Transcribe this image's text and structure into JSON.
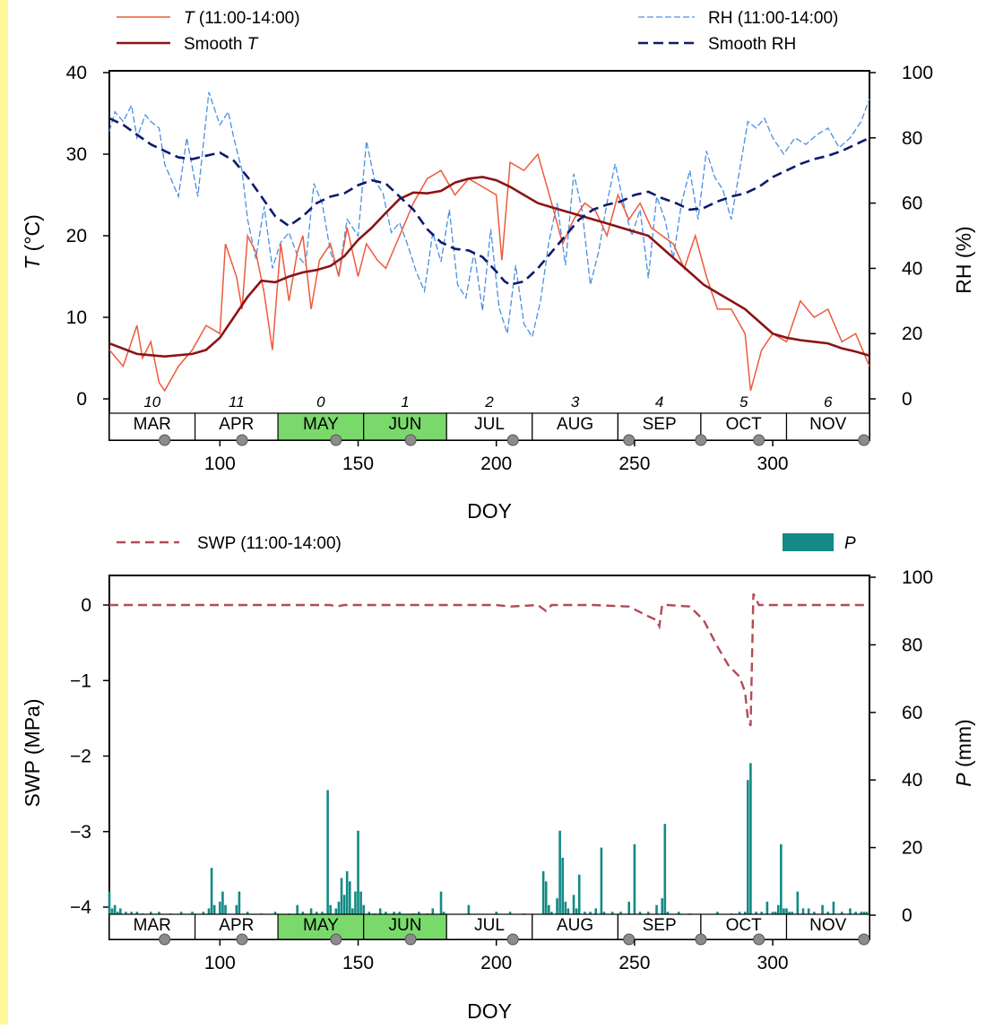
{
  "colors": {
    "accent_strip": "#fff79a",
    "temperature": "#ee5a3c",
    "smooth_temperature": "#8b1414",
    "rh": "#4a90e2",
    "smooth_rh": "#0c1a6e",
    "swp": "#b54a55",
    "precipitation": "#138a86",
    "season_highlight": "#7ad96b",
    "marker": "#8c8c8c"
  },
  "months": {
    "labels": [
      "MAR",
      "APR",
      "MAY",
      "JUN",
      "JUL",
      "AUG",
      "SEP",
      "OCT",
      "NOV"
    ],
    "start_doy": [
      60,
      91,
      121,
      152,
      182,
      213,
      244,
      274,
      305,
      335
    ],
    "highlighted": [
      "MAY",
      "JUN"
    ],
    "icon_marker_doy": [
      80,
      108,
      142,
      169,
      206,
      248,
      274,
      295,
      333
    ]
  },
  "chart_data": [
    {
      "type": "line",
      "panel": "top",
      "xlabel": "DOY",
      "ylabel_italic": "T",
      "ylabel_rest": " (°C)",
      "ylabel2": "RH (%)",
      "xlim": [
        60,
        335
      ],
      "ylim": [
        0,
        40
      ],
      "ylim2": [
        0,
        100
      ],
      "xticks": [
        100,
        150,
        200,
        250,
        300
      ],
      "yticks": [
        0,
        10,
        20,
        30,
        40
      ],
      "yticks2": [
        0,
        20,
        40,
        60,
        80,
        100
      ],
      "legend": {
        "t": {
          "italic": "T",
          "rest": " (11:00-14:00)"
        },
        "smooth_t": {
          "prefix": "Smooth ",
          "italic": "T"
        },
        "rh": "RH (11:00-14:00)",
        "smooth_rh": "Smooth RH"
      },
      "month_numbers": [
        "10",
        "11",
        "0",
        "1",
        "2",
        "3",
        "4",
        "5",
        "6"
      ],
      "series": [
        {
          "key": "t",
          "axis": "left",
          "style": "solid-thin",
          "x": [
            60,
            65,
            70,
            72,
            75,
            78,
            80,
            85,
            90,
            95,
            100,
            102,
            106,
            108,
            110,
            113,
            116,
            119,
            122,
            125,
            128,
            130,
            133,
            136,
            140,
            143,
            146,
            150,
            153,
            157,
            160,
            165,
            170,
            175,
            180,
            185,
            190,
            195,
            200,
            202,
            205,
            210,
            215,
            220,
            224,
            228,
            232,
            236,
            240,
            244,
            248,
            252,
            256,
            260,
            264,
            268,
            272,
            276,
            280,
            285,
            290,
            292,
            296,
            300,
            305,
            310,
            315,
            320,
            325,
            330,
            335
          ],
          "y": [
            6,
            4,
            9,
            5,
            7,
            2,
            1,
            4,
            6,
            9,
            8,
            19,
            15,
            11,
            20,
            18,
            13,
            6,
            19,
            12,
            18,
            20,
            11,
            17,
            19,
            15,
            21,
            15,
            19,
            17,
            16,
            20,
            24,
            27,
            28,
            25,
            27,
            26,
            25,
            17,
            29,
            28,
            30,
            24,
            19,
            22,
            24,
            23,
            20,
            25,
            22,
            24,
            21,
            20,
            19,
            16,
            20,
            15,
            11,
            11,
            8,
            1,
            6,
            8,
            7,
            12,
            10,
            11,
            7,
            8,
            4
          ]
        },
        {
          "key": "smooth_t",
          "axis": "left",
          "style": "solid-thick",
          "x": [
            60,
            70,
            80,
            90,
            95,
            100,
            105,
            110,
            115,
            120,
            125,
            130,
            135,
            140,
            145,
            150,
            155,
            160,
            165,
            170,
            175,
            180,
            185,
            190,
            195,
            200,
            205,
            210,
            215,
            220,
            225,
            230,
            235,
            240,
            245,
            250,
            255,
            260,
            265,
            270,
            275,
            280,
            285,
            290,
            295,
            300,
            305,
            310,
            315,
            320,
            325,
            330,
            335
          ],
          "y": [
            6.8,
            5.5,
            5.2,
            5.5,
            6,
            7.5,
            10,
            12.5,
            14.5,
            14.3,
            15,
            15.5,
            15.8,
            16.3,
            17.5,
            19.5,
            21,
            22.8,
            24.5,
            25.3,
            25.2,
            25.5,
            26.5,
            27,
            27.2,
            26.8,
            26,
            25,
            24,
            23.5,
            23,
            22.5,
            22,
            21.5,
            21,
            20.5,
            20,
            18.5,
            17,
            15.5,
            14,
            13,
            12,
            11,
            9.5,
            8,
            7.5,
            7.2,
            7,
            6.8,
            6.2,
            5.8,
            5.3
          ]
        },
        {
          "key": "rh",
          "axis": "right",
          "style": "dashed-thin",
          "x": [
            60,
            62,
            65,
            68,
            70,
            73,
            75,
            78,
            80,
            85,
            88,
            92,
            96,
            100,
            103,
            105,
            108,
            110,
            113,
            116,
            119,
            122,
            125,
            128,
            131,
            134,
            137,
            140,
            143,
            146,
            150,
            153,
            156,
            159,
            162,
            165,
            168,
            171,
            174,
            177,
            180,
            183,
            186,
            189,
            192,
            195,
            198,
            201,
            204,
            207,
            210,
            213,
            216,
            219,
            222,
            225,
            228,
            231,
            234,
            237,
            240,
            243,
            246,
            249,
            252,
            255,
            258,
            261,
            264,
            267,
            270,
            273,
            276,
            279,
            282,
            285,
            288,
            291,
            294,
            297,
            300,
            304,
            308,
            312,
            316,
            320,
            324,
            328,
            332,
            335
          ],
          "y": [
            82,
            88,
            85,
            90,
            80,
            87,
            85,
            83,
            72,
            62,
            80,
            62,
            94,
            84,
            88,
            80,
            70,
            55,
            43,
            59,
            40,
            48,
            51,
            44,
            41,
            66,
            60,
            45,
            38,
            55,
            50,
            79,
            67,
            63,
            51,
            54,
            47,
            39,
            33,
            51,
            42,
            58,
            35,
            31,
            45,
            27,
            52,
            28,
            20,
            41,
            23,
            19,
            30,
            48,
            60,
            41,
            69,
            58,
            35,
            45,
            60,
            72,
            60,
            50,
            58,
            37,
            62,
            55,
            43,
            60,
            70,
            55,
            76,
            68,
            64,
            55,
            70,
            85,
            83,
            86,
            80,
            75,
            80,
            78,
            81,
            83,
            77,
            80,
            85,
            92
          ]
        },
        {
          "key": "smooth_rh",
          "axis": "right",
          "style": "dashed-thick",
          "x": [
            60,
            65,
            70,
            75,
            80,
            85,
            90,
            95,
            100,
            105,
            110,
            115,
            120,
            125,
            130,
            135,
            140,
            145,
            150,
            155,
            160,
            165,
            170,
            175,
            180,
            185,
            190,
            195,
            200,
            203,
            205,
            210,
            215,
            220,
            225,
            230,
            235,
            240,
            245,
            250,
            255,
            260,
            265,
            270,
            275,
            280,
            285,
            290,
            295,
            300,
            305,
            310,
            315,
            320,
            325,
            330,
            335
          ],
          "y": [
            86,
            84,
            81,
            78,
            76,
            74,
            73.5,
            74.5,
            75.5,
            73,
            68,
            62,
            56,
            53,
            56,
            60,
            62,
            63,
            65.5,
            67,
            66,
            62,
            58,
            52,
            48,
            46,
            45.5,
            43.5,
            39,
            36,
            35,
            36,
            40,
            45,
            50,
            55,
            58,
            59.5,
            60.5,
            62.5,
            63.5,
            61.5,
            60,
            58,
            58.5,
            60.5,
            62,
            63,
            65,
            68,
            70,
            72,
            73.5,
            74.5,
            76,
            78,
            80
          ]
        }
      ]
    },
    {
      "type": "line+bar",
      "panel": "bottom",
      "xlabel": "DOY",
      "ylabel": "SWP (MPa)",
      "ylabel2_italic": "P",
      "ylabel2_rest": " (mm)",
      "xlim": [
        60,
        335
      ],
      "ylim": [
        -4.1,
        0.2
      ],
      "ylim2": [
        0,
        100
      ],
      "xticks": [
        100,
        150,
        200,
        250,
        300
      ],
      "yticks": [
        0,
        -1,
        -2,
        -3,
        -4
      ],
      "ytick_labels": [
        "0",
        "−1",
        "−2",
        "−3",
        "−4"
      ],
      "yticks2": [
        0,
        20,
        40,
        60,
        80,
        100
      ],
      "legend": {
        "swp": "SWP (11:00-14:00)",
        "p": "P"
      },
      "series": [
        {
          "key": "swp",
          "axis": "left",
          "style": "dashed",
          "x": [
            60,
            140,
            142,
            145,
            200,
            205,
            215,
            218,
            220,
            225,
            235,
            248,
            255,
            258,
            259,
            260,
            262,
            270,
            275,
            280,
            284,
            288,
            290,
            291,
            292,
            293,
            295,
            300,
            335
          ],
          "y": [
            0,
            0,
            -0.02,
            0,
            0,
            -0.02,
            0,
            -0.08,
            0,
            0,
            0,
            -0.02,
            -0.15,
            -0.2,
            -0.28,
            0,
            0,
            -0.02,
            -0.2,
            -0.55,
            -0.8,
            -0.95,
            -1.15,
            -1.5,
            -1.6,
            0.15,
            0,
            0,
            0
          ]
        },
        {
          "key": "p",
          "axis": "right",
          "style": "bars",
          "x": [
            60,
            61,
            62,
            63,
            64,
            66,
            68,
            70,
            72,
            75,
            78,
            82,
            86,
            90,
            94,
            96,
            97,
            98,
            100,
            101,
            102,
            106,
            107,
            110,
            115,
            120,
            125,
            128,
            130,
            133,
            135,
            137,
            138,
            139,
            140,
            142,
            143,
            144,
            145,
            146,
            147,
            148,
            149,
            150,
            151,
            152,
            154,
            156,
            158,
            160,
            163,
            165,
            170,
            172,
            175,
            177,
            180,
            181,
            190,
            200,
            205,
            210,
            217,
            218,
            219,
            220,
            222,
            223,
            224,
            225,
            226,
            228,
            229,
            230,
            232,
            234,
            236,
            238,
            239,
            242,
            245,
            248,
            250,
            252,
            255,
            258,
            260,
            261,
            262,
            266,
            270,
            280,
            285,
            288,
            290,
            291,
            292,
            294,
            296,
            298,
            300,
            301,
            302,
            303,
            304,
            305,
            306,
            307,
            309,
            311,
            313,
            315,
            318,
            320,
            322,
            325,
            328,
            330,
            332,
            333,
            334
          ],
          "y": [
            7,
            2,
            3,
            1,
            2,
            1,
            1,
            1,
            0.5,
            1,
            1,
            0.5,
            1,
            1,
            1,
            2,
            14,
            3,
            4,
            7,
            3,
            3,
            7,
            1,
            0.5,
            1,
            0.5,
            3,
            1,
            2,
            1,
            1,
            0.5,
            37,
            3,
            2,
            4,
            11,
            6,
            13,
            10,
            2,
            7,
            25,
            7,
            3,
            1,
            0.5,
            2,
            1,
            1,
            1,
            0.5,
            1,
            0.5,
            2,
            7,
            1,
            3,
            1,
            1,
            0.5,
            13,
            10,
            3,
            1,
            5,
            25,
            17,
            4,
            2,
            6,
            2,
            12,
            1,
            1,
            2,
            20,
            1,
            1,
            1,
            4,
            21,
            1,
            1,
            3,
            5,
            27,
            1,
            1,
            0.5,
            1,
            0.5,
            1,
            1,
            40,
            45,
            1,
            1,
            4,
            1,
            1,
            3,
            21,
            2,
            2,
            1,
            1,
            7,
            2,
            2,
            1,
            3,
            1,
            4,
            1,
            2,
            1,
            1,
            1,
            1
          ]
        }
      ]
    }
  ]
}
